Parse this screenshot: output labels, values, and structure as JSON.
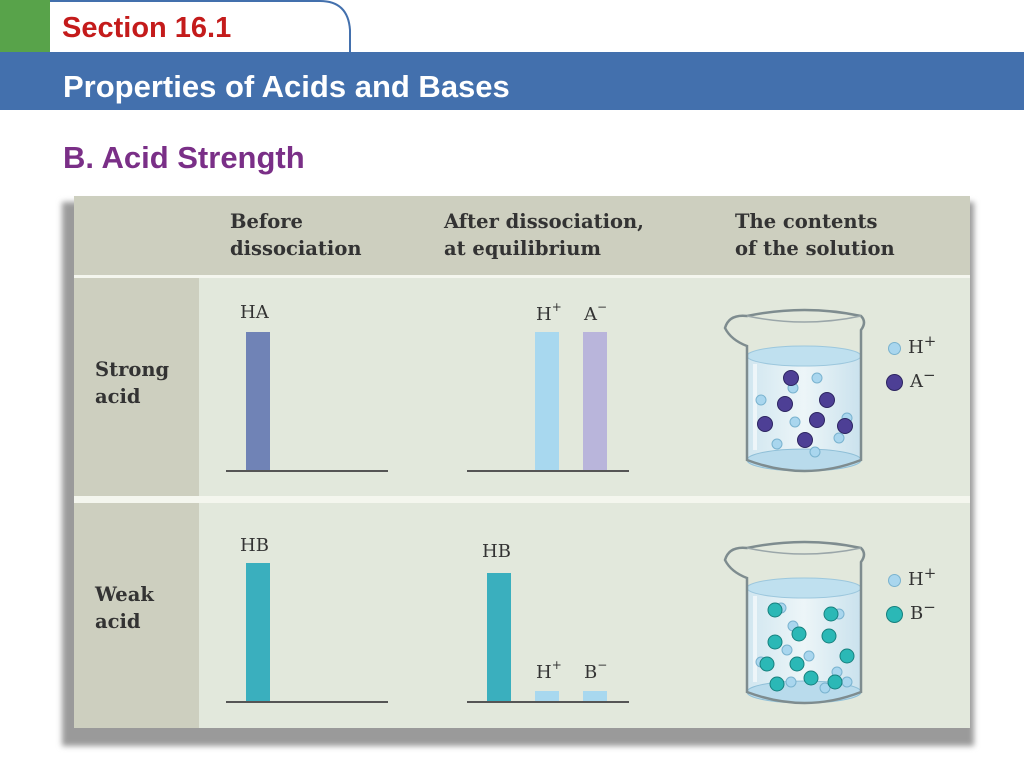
{
  "header": {
    "section": "Section 16.1",
    "title": "Properties of Acids and Bases"
  },
  "subtitle": "B. Acid Strength",
  "table": {
    "columns": [
      "Before\ndissociation",
      "After dissociation,\nat equilibrium",
      "The contents\nof the solution"
    ],
    "rows": [
      {
        "label": "Strong\nacid",
        "before": {
          "species": "HA",
          "level": 1.0
        },
        "after": [
          {
            "species": "H",
            "charge": "+",
            "level": 1.0
          },
          {
            "species": "A",
            "charge": "−",
            "level": 1.0
          }
        ],
        "key": [
          {
            "species": "H",
            "charge": "+"
          },
          {
            "species": "A",
            "charge": "−"
          }
        ]
      },
      {
        "label": "Weak\nacid",
        "before": {
          "species": "HB",
          "level": 1.0
        },
        "after": [
          {
            "species": "HB",
            "level": 0.93
          },
          {
            "species": "H",
            "charge": "+",
            "level": 0.07
          },
          {
            "species": "B",
            "charge": "−",
            "level": 0.07
          }
        ],
        "key": [
          {
            "species": "H",
            "charge": "+"
          },
          {
            "species": "B",
            "charge": "−"
          }
        ]
      }
    ]
  },
  "colors": {
    "green_tab": "#58a34a",
    "title_bar": "#4370ad",
    "section_red": "#c41b1b",
    "subtitle_purple": "#7a2f87",
    "ha_bar": "#7083b6",
    "h_plus_bar": "#a8d8ef",
    "a_minus_bar": "#b9b5db",
    "hb_bar": "#3aafbe",
    "h_plus_particle": "#a9d6ee",
    "a_minus_particle": "#4d3f95",
    "b_minus_particle": "#2bb8b6"
  }
}
